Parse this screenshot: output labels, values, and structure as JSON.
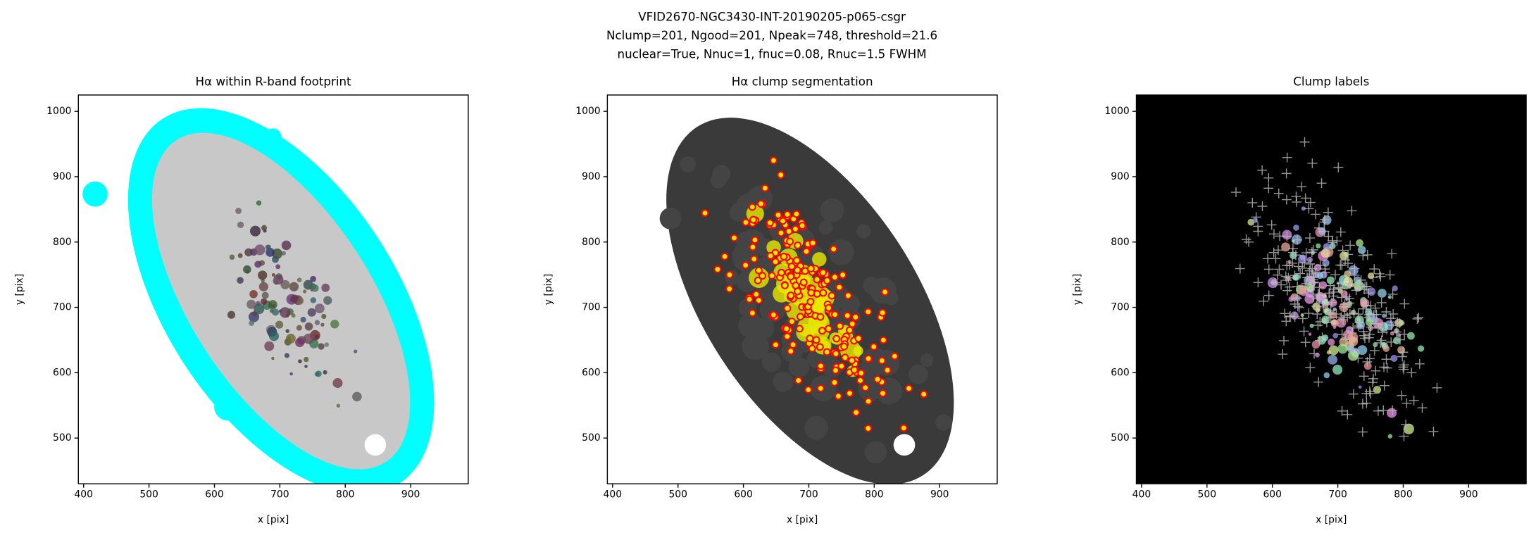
{
  "suptitle": [
    "VFID2670-NGC3430-INT-20190205-p065-csgr",
    "Nclump=201, Ngood=201, Npeak=748, threshold=21.6",
    "nuclear=True, Nnuc=1, fnuc=0.08, Rnuc=1.5 FWHM"
  ],
  "chart_data": [
    {
      "type": "image",
      "title": "Hα within R-band footprint",
      "x_label": "x [pix]",
      "y_label": "y [pix]",
      "xlim": [
        392,
        988
      ],
      "ylim": [
        430,
        1025
      ],
      "xticks": [
        400,
        500,
        600,
        700,
        800,
        900
      ],
      "yticks": [
        500,
        600,
        700,
        800,
        900,
        1000
      ],
      "style": "footprint"
    },
    {
      "type": "image",
      "title": "Hα clump segmentation",
      "x_label": "x [pix]",
      "y_label": "y [pix]",
      "xlim": [
        392,
        988
      ],
      "ylim": [
        430,
        1025
      ],
      "xticks": [
        400,
        500,
        600,
        700,
        800,
        900
      ],
      "yticks": [
        500,
        600,
        700,
        800,
        900,
        1000
      ],
      "style": "segmentation"
    },
    {
      "type": "image",
      "title": "Clump labels",
      "x_label": "x [pix]",
      "y_label": "y [pix]",
      "xlim": [
        392,
        988
      ],
      "ylim": [
        430,
        1025
      ],
      "xticks": [
        400,
        500,
        600,
        700,
        800,
        900
      ],
      "yticks": [
        500,
        600,
        700,
        800,
        900,
        1000
      ],
      "style": "labels"
    }
  ]
}
